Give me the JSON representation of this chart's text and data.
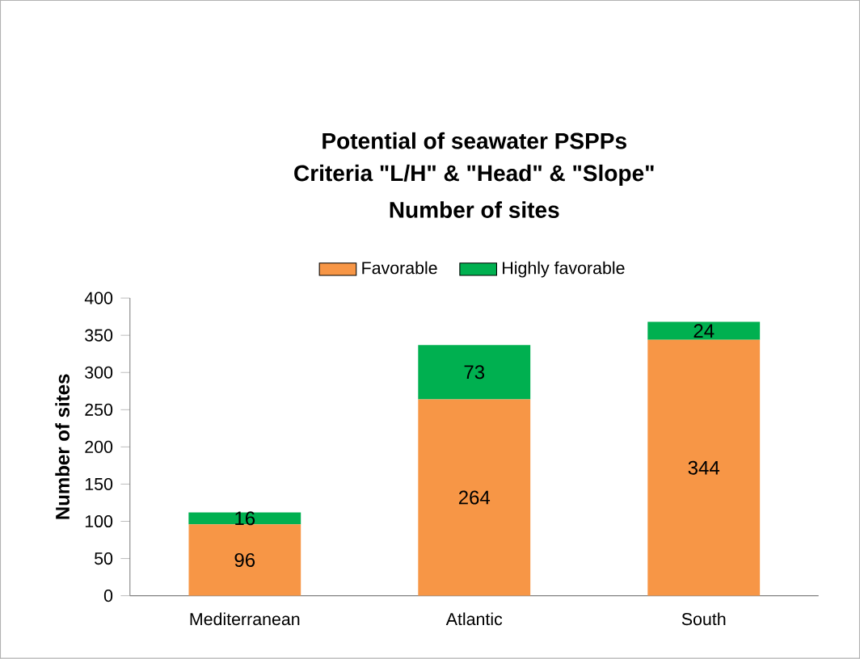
{
  "chart_data": {
    "type": "bar",
    "stacked": true,
    "title": "Potential of seawater PSPPs",
    "subtitle": "Criteria \"L/H\" & \"Head\" & \"Slope\"",
    "annotations": [
      "Number of sites"
    ],
    "ylabel": "Number of sites",
    "categories": [
      "Mediterranean",
      "Atlantic",
      "South"
    ],
    "series": [
      {
        "name": "Favorable",
        "color": "#f79646",
        "values": [
          96,
          264,
          344
        ]
      },
      {
        "name": "Highly favorable",
        "color": "#00b050",
        "values": [
          16,
          73,
          24
        ]
      }
    ],
    "ylim": [
      0,
      400
    ],
    "yticks": [
      0,
      50,
      100,
      150,
      200,
      250,
      300,
      350,
      400
    ],
    "legend": "top",
    "data_labels": true
  }
}
